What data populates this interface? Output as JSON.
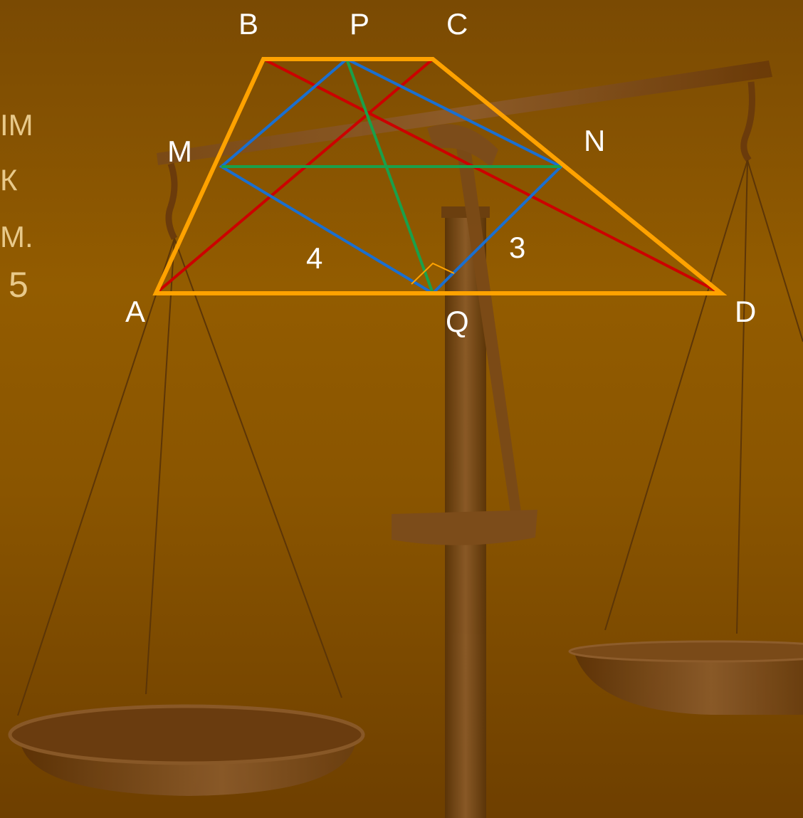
{
  "side_text": [
    "ІМ",
    "К",
    "М.",
    "5"
  ],
  "points": {
    "A": "A",
    "B": "B",
    "C": "C",
    "D": "D",
    "M": "M",
    "N": "N",
    "P": "P",
    "Q": "Q"
  },
  "segment_labels": {
    "MQ": "4",
    "QN": "3"
  },
  "colors": {
    "trapezoid": "#ffa200",
    "diagonals": "#cc0000",
    "rhombus": "#1a6fd0",
    "midlines": "#1aa04a",
    "right_angle_mark": "#ffa200"
  }
}
